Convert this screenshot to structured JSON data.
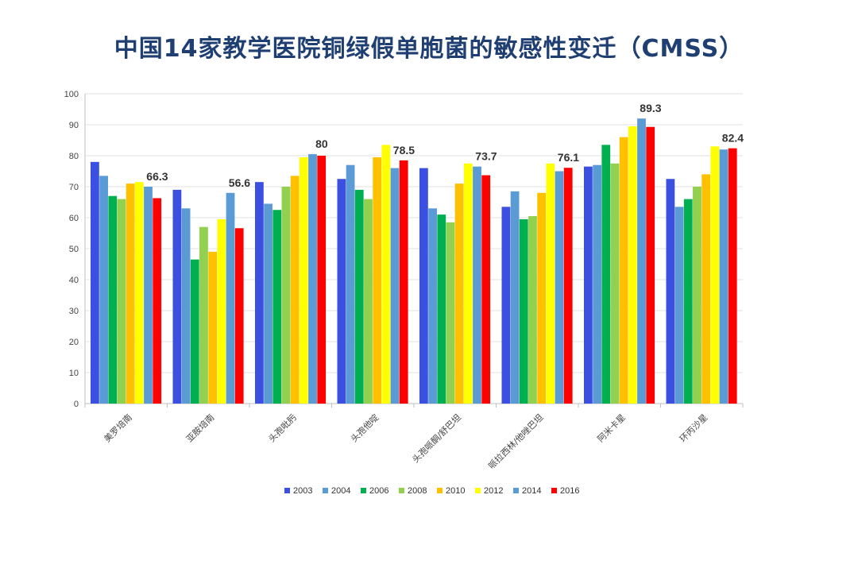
{
  "page": {
    "title": "中国14家教学医院铜绿假单胞菌的敏感性变迁（CMSS）"
  },
  "chart_data": {
    "type": "bar",
    "title": "中国14家教学医院铜绿假单胞菌的敏感性变迁（CMSS）",
    "xlabel": "",
    "ylabel": "",
    "ylim": [
      0,
      100
    ],
    "yticks": [
      0,
      10,
      20,
      30,
      40,
      50,
      60,
      70,
      80,
      90,
      100
    ],
    "grid": true,
    "legend_position": "bottom",
    "categories": [
      "美罗培南",
      "亚胺培南",
      "头孢吡肟",
      "头孢他啶",
      "头孢哌酮/舒巴坦",
      "哌拉西林/他唑巴坦",
      "阿米卡星",
      "环丙沙星"
    ],
    "series": [
      {
        "name": "2003",
        "color": "#3b4fe0",
        "values": [
          78,
          69,
          71.5,
          72.5,
          76,
          63.5,
          76.5,
          72.5
        ]
      },
      {
        "name": "2004",
        "color": "#5b9bd5",
        "values": [
          73.5,
          63,
          64.5,
          77,
          63,
          68.5,
          77,
          63.5
        ]
      },
      {
        "name": "2006",
        "color": "#00b050",
        "values": [
          67,
          46.5,
          62.5,
          69,
          61,
          59.5,
          83.5,
          66
        ]
      },
      {
        "name": "2008",
        "color": "#92d050",
        "values": [
          66,
          57,
          70,
          66,
          58.5,
          60.5,
          77.5,
          70
        ]
      },
      {
        "name": "2010",
        "color": "#ffc000",
        "values": [
          71,
          49,
          73.5,
          79.5,
          71,
          68,
          86,
          74
        ]
      },
      {
        "name": "2012",
        "color": "#ffff00",
        "values": [
          71.5,
          59.5,
          79.5,
          83.5,
          77.5,
          77.5,
          89.5,
          83
        ]
      },
      {
        "name": "2014",
        "color": "#5b9bd5",
        "values": [
          70,
          68,
          80.5,
          76,
          76.5,
          75,
          92,
          82
        ]
      },
      {
        "name": "2016",
        "color": "#ff0000",
        "values": [
          66.3,
          56.6,
          80,
          78.5,
          73.7,
          76.1,
          89.3,
          82.4
        ]
      }
    ],
    "data_labels": [
      "66.3",
      "56.6",
      "80",
      "78.5",
      "73.7",
      "76.1",
      "89.3",
      "82.4"
    ]
  }
}
